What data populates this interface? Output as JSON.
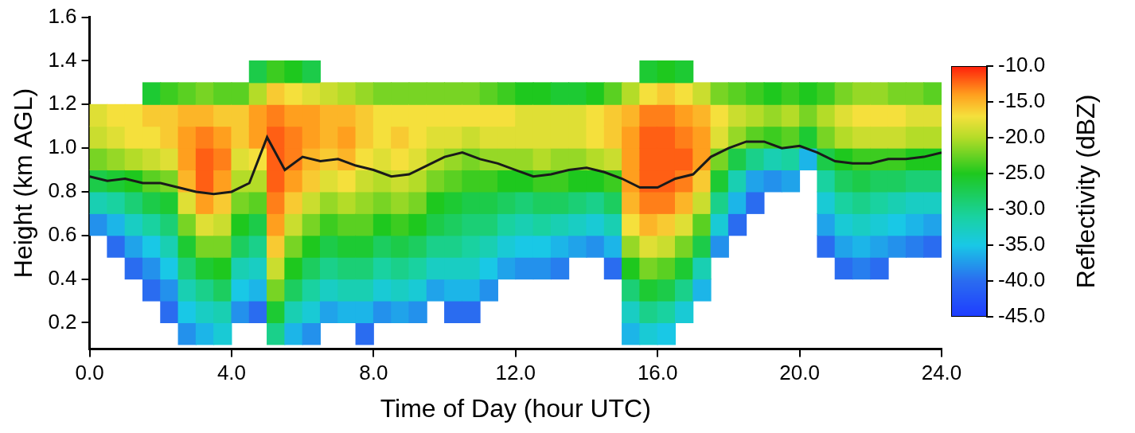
{
  "chart_data": {
    "type": "heatmap",
    "x_label": "Time of Day (hour UTC)",
    "y_label": "Height (km AGL)",
    "xlim": [
      0,
      24
    ],
    "xticks": [
      {
        "value": 0,
        "label": "0.0"
      },
      {
        "value": 4,
        "label": "4.0"
      },
      {
        "value": 8,
        "label": "8.0"
      },
      {
        "value": 12,
        "label": "12.0"
      },
      {
        "value": 16,
        "label": "16.0"
      },
      {
        "value": 20,
        "label": "20.0"
      },
      {
        "value": 24,
        "label": "24.0"
      }
    ],
    "ylim": [
      0.08,
      1.6
    ],
    "yticks": [
      0.2,
      0.4,
      0.6,
      0.8,
      {
        "value": 1,
        "label": "1.0"
      },
      1.2,
      1.4,
      1.6
    ],
    "grid": false,
    "cells": {
      "x": [
        0.25,
        0.75,
        1.25,
        1.75,
        2.25,
        2.75,
        3.25,
        3.75,
        4.25,
        4.75,
        5.25,
        5.75,
        6.25,
        6.75,
        7.25,
        7.75,
        8.25,
        8.75,
        9.25,
        9.75,
        10.25,
        10.75,
        11.25,
        11.75,
        12.25,
        12.75,
        13.25,
        13.75,
        14.25,
        14.75,
        15.25,
        15.75,
        16.25,
        16.75,
        17.25,
        17.75,
        18.25,
        18.75,
        19.25,
        19.75,
        20.25,
        20.75,
        21.25,
        21.75,
        22.25,
        22.75,
        23.25,
        23.75
      ],
      "y": [
        0.15,
        0.25,
        0.35,
        0.45,
        0.55,
        0.65,
        0.75,
        0.85,
        0.95,
        1.05,
        1.15,
        1.25,
        1.35
      ],
      "z": [
        [
          null,
          null,
          null,
          null,
          null,
          -38,
          -32,
          -27,
          -22,
          -19,
          -18,
          null,
          null
        ],
        [
          null,
          null,
          null,
          null,
          -40,
          -36,
          -31,
          -26,
          -21,
          -18,
          -17,
          null,
          null
        ],
        [
          null,
          null,
          null,
          -40,
          -37,
          -33,
          -29,
          -25,
          -20,
          -17,
          -17,
          null,
          null
        ],
        [
          null,
          null,
          -40,
          -38,
          -35,
          -31,
          -27,
          -23,
          -19,
          -17,
          -16,
          -26,
          null
        ],
        [
          null,
          -40,
          -38,
          -35,
          -32,
          -29,
          -26,
          -22,
          -18,
          -16,
          -16,
          -24,
          null
        ],
        [
          -38,
          -35,
          -32,
          -29,
          -26,
          -22,
          -18,
          -15,
          -14,
          -14,
          -15,
          -23,
          null
        ],
        [
          -36,
          -33,
          -30,
          -26,
          -22,
          -18,
          -14,
          -12,
          -12,
          -13,
          -15,
          -22,
          null
        ],
        [
          -34,
          -32,
          -28,
          -25,
          -22,
          -19,
          -16,
          -14,
          -13,
          -14,
          -16,
          -23,
          null
        ],
        [
          null,
          -38,
          -35,
          -32,
          -28,
          -25,
          -22,
          -20,
          -18,
          -16,
          -16,
          -23,
          null
        ],
        [
          null,
          -40,
          -36,
          -33,
          -30,
          -27,
          -23,
          -20,
          -17,
          -14,
          -14,
          -20,
          -27
        ],
        [
          -30,
          -26,
          -22,
          -19,
          -16,
          -14,
          -13,
          -12,
          -12,
          -12,
          -13,
          -16,
          -24
        ],
        [
          -36,
          -32,
          -28,
          -25,
          -22,
          -19,
          -16,
          -14,
          -13,
          -13,
          -14,
          -17,
          -25
        ],
        [
          -38,
          -34,
          -31,
          -28,
          -25,
          -22,
          -19,
          -16,
          -15,
          -14,
          -14,
          -18,
          -27
        ],
        [
          null,
          -37,
          -33,
          -30,
          -27,
          -24,
          -21,
          -18,
          -16,
          -15,
          -15,
          -19,
          null
        ],
        [
          null,
          -36,
          -32,
          -29,
          -26,
          -23,
          -20,
          -17,
          -15,
          -14,
          -15,
          -20,
          null
        ],
        [
          -40,
          -36,
          -32,
          -29,
          -26,
          -23,
          -21,
          -19,
          -17,
          -16,
          -16,
          -21,
          null
        ],
        [
          null,
          -38,
          -34,
          -31,
          -28,
          -25,
          -22,
          -20,
          -18,
          -17,
          -17,
          -22,
          null
        ],
        [
          null,
          -37,
          -33,
          -30,
          -27,
          -24,
          -21,
          -19,
          -17,
          -16,
          -17,
          -22,
          null
        ],
        [
          null,
          -38,
          -34,
          -31,
          -28,
          -25,
          -22,
          -20,
          -18,
          -17,
          -17,
          -22,
          null
        ],
        [
          null,
          null,
          -37,
          -33,
          -30,
          -27,
          -25,
          -22,
          -20,
          -18,
          -17,
          -22,
          null
        ],
        [
          null,
          -40,
          -36,
          -33,
          -30,
          -28,
          -26,
          -23,
          -21,
          -18,
          -17,
          -22,
          null
        ],
        [
          null,
          -40,
          -36,
          -33,
          -31,
          -29,
          -27,
          -24,
          -22,
          -19,
          -17,
          -22,
          null
        ],
        [
          null,
          null,
          -38,
          -35,
          -32,
          -29,
          -27,
          -24,
          -21,
          -18,
          -17,
          -23,
          null
        ],
        [
          null,
          null,
          null,
          -37,
          -34,
          -31,
          -28,
          -25,
          -21,
          -18,
          -17,
          -24,
          null
        ],
        [
          null,
          null,
          null,
          -38,
          -35,
          -32,
          -29,
          -25,
          -21,
          -18,
          -18,
          -25,
          null
        ],
        [
          null,
          null,
          null,
          -38,
          -35,
          -31,
          -28,
          -24,
          -20,
          -18,
          -18,
          -25,
          null
        ],
        [
          null,
          null,
          null,
          -39,
          -36,
          -32,
          -28,
          -24,
          -21,
          -18,
          -18,
          -26,
          null
        ],
        [
          null,
          null,
          null,
          null,
          -37,
          -33,
          -29,
          -25,
          -21,
          -18,
          -18,
          -26,
          null
        ],
        [
          null,
          null,
          null,
          null,
          -38,
          -34,
          -30,
          -25,
          -20,
          -17,
          -17,
          -25,
          null
        ],
        [
          null,
          null,
          null,
          -40,
          -36,
          -32,
          -28,
          -24,
          -19,
          -16,
          -16,
          -23,
          null
        ],
        [
          -36,
          -33,
          -29,
          -25,
          -21,
          -17,
          -15,
          -14,
          -14,
          -14,
          -15,
          -20,
          null
        ],
        [
          -34,
          -30,
          -26,
          -22,
          -18,
          -15,
          -13,
          -12,
          -12,
          -12,
          -13,
          -17,
          -26
        ],
        [
          -35,
          -31,
          -27,
          -23,
          -19,
          -16,
          -13,
          -12,
          -12,
          -12,
          -13,
          -16,
          -25
        ],
        [
          null,
          -34,
          -30,
          -26,
          -22,
          -18,
          -15,
          -13,
          -12,
          -13,
          -14,
          -17,
          -26
        ],
        [
          null,
          null,
          -36,
          -32,
          -27,
          -23,
          -19,
          -16,
          -14,
          -14,
          -15,
          -19,
          null
        ],
        [
          null,
          null,
          null,
          null,
          -38,
          -34,
          -30,
          -26,
          -22,
          -18,
          -17,
          -22,
          null
        ],
        [
          null,
          null,
          null,
          null,
          null,
          -40,
          -36,
          -32,
          -27,
          -21,
          -19,
          -23,
          null
        ],
        [
          null,
          null,
          null,
          null,
          null,
          null,
          -40,
          -37,
          -30,
          -23,
          -20,
          -24,
          null
        ],
        [
          null,
          null,
          null,
          null,
          null,
          null,
          null,
          -38,
          -32,
          -24,
          -21,
          -25,
          null
        ],
        [
          null,
          null,
          null,
          null,
          null,
          null,
          null,
          -37,
          -31,
          -23,
          -20,
          -24,
          null
        ],
        [
          null,
          null,
          null,
          null,
          null,
          null,
          null,
          null,
          -36,
          -26,
          -22,
          -25,
          null
        ],
        [
          null,
          null,
          null,
          null,
          -40,
          -37,
          -34,
          -31,
          -27,
          -22,
          -20,
          -24,
          null
        ],
        [
          null,
          null,
          null,
          -40,
          -37,
          -34,
          -31,
          -28,
          -25,
          -20,
          -18,
          -22,
          null
        ],
        [
          null,
          null,
          null,
          -39,
          -36,
          -33,
          -30,
          -27,
          -24,
          -19,
          -17,
          -21,
          null
        ],
        [
          null,
          null,
          null,
          -40,
          -37,
          -34,
          -31,
          -28,
          -24,
          -19,
          -17,
          -21,
          null
        ],
        [
          null,
          null,
          null,
          null,
          -38,
          -35,
          -32,
          -28,
          -24,
          -19,
          -17,
          -22,
          null
        ],
        [
          null,
          null,
          null,
          null,
          -39,
          -36,
          -33,
          -29,
          -25,
          -20,
          -18,
          -22,
          null
        ],
        [
          null,
          null,
          null,
          null,
          -40,
          -37,
          -33,
          -29,
          -25,
          -20,
          -18,
          -23,
          null
        ]
      ]
    },
    "colorbar": {
      "label": "Reflectivity (dBZ)",
      "range": [
        -45,
        -10
      ],
      "ticks": [
        {
          "value": -45,
          "label": "-45.0"
        },
        {
          "value": -40,
          "label": "-40.0"
        },
        {
          "value": -35,
          "label": "-35.0"
        },
        {
          "value": -30,
          "label": "-30.0"
        },
        {
          "value": -25,
          "label": "-25.0"
        },
        {
          "value": -20,
          "label": "-20.0"
        },
        {
          "value": -15,
          "label": "-15.0"
        },
        {
          "value": -10,
          "label": "-10.0"
        }
      ]
    },
    "series": [
      {
        "type": "line",
        "color": "#1a1a1a",
        "x": [
          0,
          0.5,
          1,
          1.5,
          2,
          2.5,
          3,
          3.5,
          4,
          4.5,
          5,
          5.5,
          6,
          6.5,
          7,
          7.5,
          8,
          8.5,
          9,
          9.5,
          10,
          10.5,
          11,
          11.5,
          12,
          12.5,
          13,
          13.5,
          14,
          14.5,
          15,
          15.5,
          16,
          16.5,
          17,
          17.5,
          18,
          18.5,
          19,
          19.5,
          20,
          20.5,
          21,
          21.5,
          22,
          22.5,
          23,
          23.5,
          24
        ],
        "values": [
          0.87,
          0.85,
          0.86,
          0.84,
          0.84,
          0.82,
          0.8,
          0.79,
          0.8,
          0.84,
          1.05,
          0.9,
          0.96,
          0.94,
          0.95,
          0.92,
          0.9,
          0.87,
          0.88,
          0.92,
          0.96,
          0.98,
          0.95,
          0.93,
          0.9,
          0.87,
          0.88,
          0.9,
          0.91,
          0.89,
          0.86,
          0.82,
          0.82,
          0.86,
          0.88,
          0.96,
          1.0,
          1.03,
          1.03,
          1.0,
          1.01,
          0.98,
          0.94,
          0.93,
          0.93,
          0.95,
          0.95,
          0.96,
          0.98
        ]
      }
    ]
  }
}
